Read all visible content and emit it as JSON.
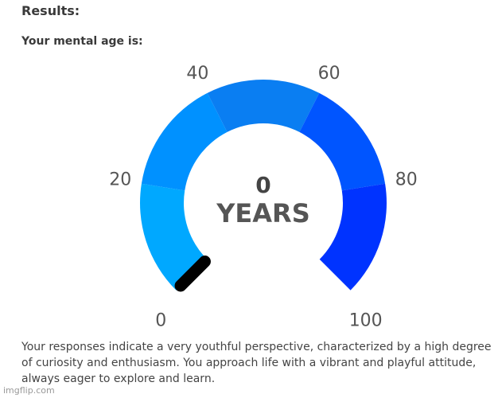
{
  "header": {
    "title": "Results:",
    "subtitle": "Your mental age is:"
  },
  "chart_data": {
    "type": "gauge",
    "value": 0,
    "value_label": "YEARS",
    "range": [
      0,
      100
    ],
    "ticks": [
      0,
      20,
      40,
      60,
      80,
      100
    ],
    "band_colors": [
      "#00a8ff",
      "#0091ff",
      "#0a7ef2",
      "#0055ff",
      "#0033ff"
    ],
    "needle_color": "#000000"
  },
  "description": "Your responses indicate a very youthful perspective, characterized by a high degree of curiosity and enthusiasm. You approach life with a vibrant and playful attitude, always eager to explore and learn.",
  "watermark": "imgflip.com"
}
